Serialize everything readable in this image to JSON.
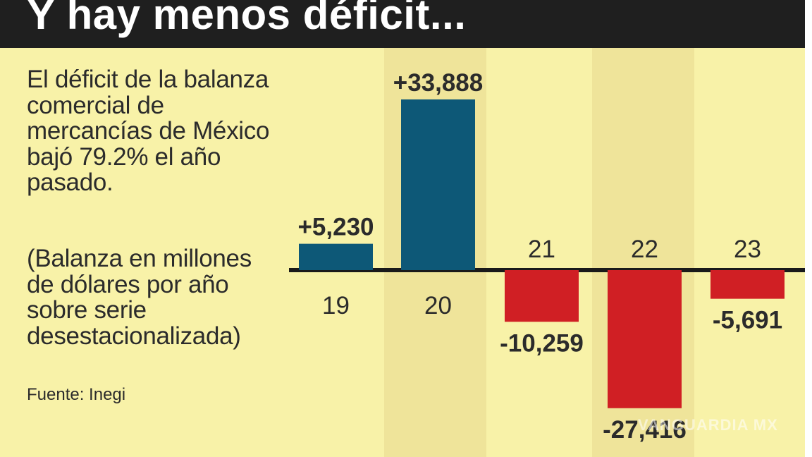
{
  "title": "Y hay menos déficit...",
  "description": "El déficit de la balanza comercial de mercancías de México bajó 79.2% el año pasado.",
  "units_note": "(Balanza en millones de dólares por año sobre serie desestacionalizada)",
  "source": "Fuente: Inegi",
  "watermark": "VANGUARDIA MX",
  "colors": {
    "background": "#f8f2a8",
    "column_band": "#efe49a",
    "positive": "#0d5877",
    "negative": "#d01f24",
    "title_bar": "#1f1f1f"
  },
  "chart_data": {
    "type": "bar",
    "title": "Y hay menos déficit...",
    "categories": [
      "19",
      "20",
      "21",
      "22",
      "23"
    ],
    "values": [
      5230,
      33888,
      -10259,
      -27416,
      -5691
    ],
    "value_labels": [
      "+5,230",
      "+33,888",
      "-10,259",
      "-27,416",
      "-5,691"
    ],
    "ylim": [
      -28000,
      36000
    ],
    "grid": false,
    "legend": "none",
    "xlabel": "",
    "ylabel": ""
  }
}
